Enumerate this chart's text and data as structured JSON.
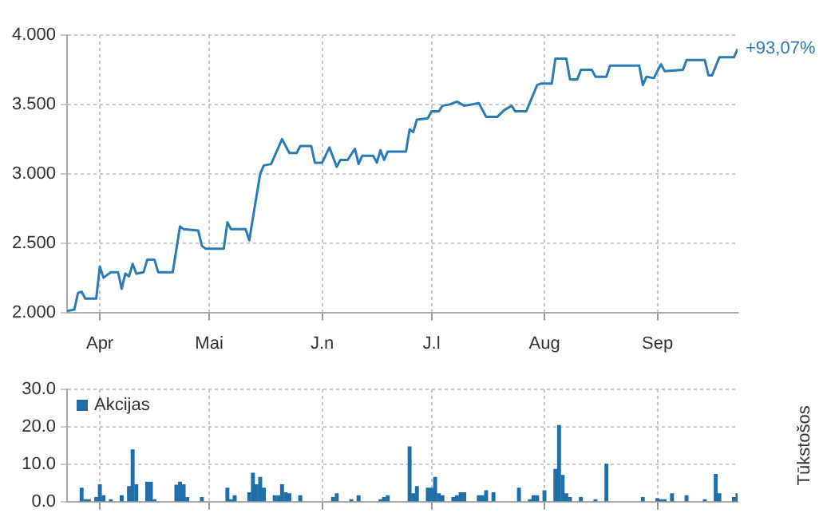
{
  "chart_data": [
    {
      "type": "line",
      "xlim": [
        "--03-23",
        "--09-23"
      ],
      "ylim": [
        2,
        4
      ],
      "xticks": [
        {
          "value": "--04-01",
          "label": "Apr"
        },
        {
          "value": "--05-01",
          "label": "Mai"
        },
        {
          "value": "--06-01",
          "label": "J.n"
        },
        {
          "value": "--07-01",
          "label": "J.l"
        },
        {
          "value": "--08-01",
          "label": "Aug"
        },
        {
          "value": "--09-01",
          "label": "Sep"
        }
      ],
      "yticks": [
        {
          "value": 2,
          "label": "2.000"
        },
        {
          "value": 2.5,
          "label": "2.500"
        },
        {
          "value": 3,
          "label": "3.000"
        },
        {
          "value": 3.5,
          "label": "3.500"
        },
        {
          "value": 4,
          "label": "4.000"
        }
      ],
      "grid": true,
      "annotations": [
        {
          "text": "+93,07%",
          "x": "--09-23",
          "y": 3.9
        }
      ],
      "series": [
        {
          "color": "#2b7bb4",
          "x": [
            "--03-23",
            "--03-25",
            "--03-26",
            "--03-27",
            "--03-28",
            "--03-31",
            "--04-01",
            "--04-02",
            "--04-03",
            "--04-04",
            "--04-06",
            "--04-07",
            "--04-08",
            "--04-09",
            "--04-10",
            "--04-11",
            "--04-13",
            "--04-14",
            "--04-16",
            "--04-17",
            "--04-21",
            "--04-23",
            "--04-24",
            "--04-28",
            "--04-29",
            "--04-30",
            "--05-05",
            "--05-06",
            "--05-07",
            "--05-11",
            "--05-12",
            "--05-15",
            "--05-16",
            "--05-18",
            "--05-21",
            "--05-23",
            "--05-25",
            "--05-26",
            "--05-29",
            "--05-30",
            "--06-01",
            "--06-03",
            "--06-05",
            "--06-06",
            "--06-08",
            "--06-10",
            "--06-11",
            "--06-12",
            "--06-15",
            "--06-16",
            "--06-17",
            "--06-18",
            "--06-19",
            "--06-24",
            "--06-25",
            "--06-26",
            "--06-27",
            "--06-30",
            "--07-01",
            "--07-03",
            "--07-04",
            "--07-06",
            "--07-08",
            "--07-10",
            "--07-14",
            "--07-16",
            "--07-19",
            "--07-21",
            "--07-23",
            "--07-24",
            "--07-27",
            "--07-30",
            "--07-31",
            "--08-03",
            "--08-04",
            "--08-07",
            "--08-08",
            "--08-10",
            "--08-11",
            "--08-14",
            "--08-15",
            "--08-18",
            "--08-19",
            "--08-27",
            "--08-28",
            "--08-29",
            "--08-31",
            "--09-02",
            "--09-03",
            "--09-08",
            "--09-09",
            "--09-14",
            "--09-15",
            "--09-16",
            "--09-18",
            "--09-22",
            "--09-23"
          ],
          "values": [
            2.01,
            2.02,
            2.14,
            2.15,
            2.1,
            2.1,
            2.33,
            2.25,
            2.27,
            2.29,
            2.29,
            2.17,
            2.28,
            2.26,
            2.35,
            2.28,
            2.29,
            2.38,
            2.38,
            2.29,
            2.29,
            2.62,
            2.6,
            2.59,
            2.48,
            2.46,
            2.46,
            2.65,
            2.6,
            2.6,
            2.52,
            3.0,
            3.06,
            3.07,
            3.25,
            3.15,
            3.15,
            3.2,
            3.2,
            3.08,
            3.08,
            3.19,
            3.05,
            3.1,
            3.1,
            3.18,
            3.07,
            3.13,
            3.13,
            3.08,
            3.17,
            3.1,
            3.16,
            3.16,
            3.32,
            3.3,
            3.39,
            3.4,
            3.45,
            3.45,
            3.49,
            3.5,
            3.52,
            3.49,
            3.51,
            3.41,
            3.41,
            3.46,
            3.49,
            3.45,
            3.45,
            3.64,
            3.65,
            3.65,
            3.83,
            3.83,
            3.68,
            3.68,
            3.75,
            3.75,
            3.7,
            3.7,
            3.78,
            3.78,
            3.64,
            3.7,
            3.69,
            3.79,
            3.74,
            3.75,
            3.82,
            3.82,
            3.71,
            3.71,
            3.84,
            3.84,
            3.9
          ]
        }
      ]
    },
    {
      "type": "bar",
      "xlim": [
        "--03-23",
        "--09-23"
      ],
      "ylim": [
        0,
        30
      ],
      "xticks": [
        {
          "value": "--04-01",
          "label": null
        },
        {
          "value": "--05-01",
          "label": null
        },
        {
          "value": "--06-01",
          "label": null
        },
        {
          "value": "--07-01",
          "label": null
        },
        {
          "value": "--08-01",
          "label": null
        },
        {
          "value": "--09-01",
          "label": null
        }
      ],
      "yticks": [
        {
          "value": 0,
          "label": "0.0"
        },
        {
          "value": 10,
          "label": "10.0"
        },
        {
          "value": 20,
          "label": "20.0"
        },
        {
          "value": 30,
          "label": "30.0"
        }
      ],
      "tick_labels": "y",
      "grid": true,
      "legend": "top left",
      "ylabel": "Tūkstošos",
      "series": [
        {
          "name": "Akcijas",
          "color": "#1f6ea8",
          "x": [
            "--03-27",
            "--03-28",
            "--03-29",
            "--03-31",
            "--04-01",
            "--04-02",
            "--04-04",
            "--04-07",
            "--04-09",
            "--04-10",
            "--04-11",
            "--04-14",
            "--04-15",
            "--04-16",
            "--04-22",
            "--04-23",
            "--04-24",
            "--04-25",
            "--04-29",
            "--05-06",
            "--05-07",
            "--05-08",
            "--05-12",
            "--05-13",
            "--05-14",
            "--05-15",
            "--05-16",
            "--05-19",
            "--05-20",
            "--05-21",
            "--05-22",
            "--05-23",
            "--05-26",
            "--06-04",
            "--06-05",
            "--06-09",
            "--06-11",
            "--06-17",
            "--06-18",
            "--06-19",
            "--06-25",
            "--06-26",
            "--06-27",
            "--06-30",
            "--07-01",
            "--07-02",
            "--07-03",
            "--07-04",
            "--07-07",
            "--07-08",
            "--07-09",
            "--07-10",
            "--07-14",
            "--07-15",
            "--07-16",
            "--07-18",
            "--07-25",
            "--07-28",
            "--07-29",
            "--07-30",
            "--08-01",
            "--08-04",
            "--08-05",
            "--08-06",
            "--08-07",
            "--08-08",
            "--08-11",
            "--08-15",
            "--08-18",
            "--08-28",
            "--09-01",
            "--09-02",
            "--09-03",
            "--09-05",
            "--09-09",
            "--09-14",
            "--09-17",
            "--09-18",
            "--09-22",
            "--09-23"
          ],
          "values": [
            3.6,
            0.5,
            0.5,
            1.1,
            4.5,
            1.6,
            0.5,
            1.6,
            4.0,
            13.8,
            4.5,
            5.2,
            5.2,
            0.5,
            4.4,
            5.2,
            4.5,
            1.1,
            1.1,
            3.6,
            0.5,
            1.6,
            2.4,
            7.6,
            4.5,
            6.5,
            3.6,
            1.6,
            1.6,
            4.5,
            2.4,
            2.1,
            1.6,
            1.1,
            2.1,
            0.5,
            1.6,
            0.5,
            1.1,
            1.6,
            14.6,
            2.1,
            4.0,
            3.6,
            3.6,
            6.5,
            2.1,
            1.6,
            1.1,
            1.6,
            2.4,
            2.4,
            1.6,
            1.6,
            2.9,
            2.4,
            3.6,
            0.5,
            1.6,
            1.6,
            2.9,
            8.6,
            20.3,
            7.0,
            2.1,
            1.1,
            1.1,
            0.5,
            10.0,
            1.1,
            0.8,
            0.5,
            0.5,
            2.1,
            1.6,
            0.5,
            7.3,
            2.1,
            1.1,
            2.1
          ]
        }
      ]
    }
  ]
}
